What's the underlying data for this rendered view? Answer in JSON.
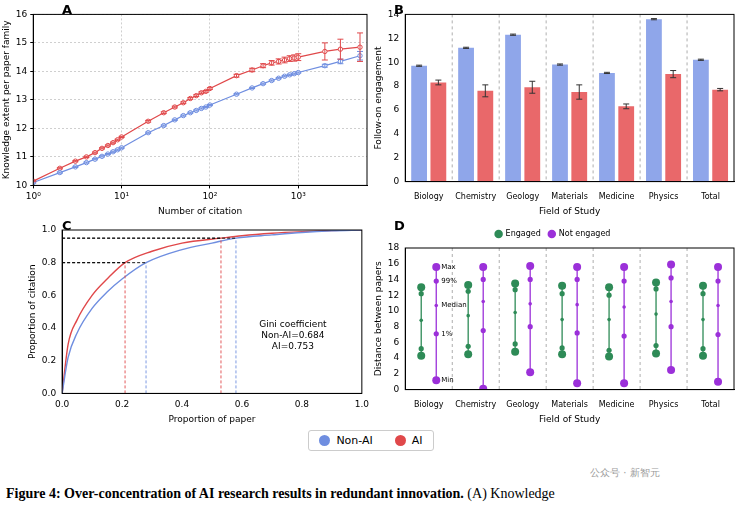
{
  "chart_data": [
    {
      "type": "line",
      "title": "A",
      "log": "x",
      "grid": true,
      "x_label": "Number of citation",
      "y_label": "Knowledge extent per paper family",
      "x": [
        1,
        2,
        3,
        4,
        5,
        6,
        7,
        8,
        9,
        10,
        20,
        30,
        40,
        50,
        60,
        70,
        80,
        90,
        100,
        200,
        300,
        400,
        500,
        600,
        700,
        800,
        900,
        1000,
        2000,
        3000,
        5000
      ],
      "xlim": [
        1,
        6000
      ],
      "xticks": [
        {
          "value": 1,
          "label": "10⁰"
        },
        {
          "value": 10,
          "label": "10¹"
        },
        {
          "value": 100,
          "label": "10²"
        },
        {
          "value": 1000,
          "label": "10³"
        }
      ],
      "ylim": [
        10,
        16
      ],
      "yticks": [
        10,
        11,
        12,
        13,
        14,
        15,
        16
      ],
      "marker": "circle",
      "series": [
        {
          "name": "Non-AI",
          "color": "#6f8ee0",
          "values": [
            10.1,
            10.45,
            10.65,
            10.8,
            10.92,
            11.02,
            11.1,
            11.18,
            11.25,
            11.32,
            11.85,
            12.1,
            12.3,
            12.45,
            12.55,
            12.63,
            12.7,
            12.75,
            12.82,
            13.2,
            13.42,
            13.57,
            13.68,
            13.76,
            13.83,
            13.88,
            13.92,
            13.96,
            14.2,
            14.35,
            14.55
          ],
          "errors": [
            0.02,
            0.02,
            0.02,
            0.02,
            0.02,
            0.02,
            0.02,
            0.02,
            0.02,
            0.02,
            0.02,
            0.02,
            0.02,
            0.02,
            0.02,
            0.02,
            0.02,
            0.02,
            0.02,
            0.02,
            0.02,
            0.02,
            0.02,
            0.02,
            0.02,
            0.02,
            0.02,
            0.02,
            0.05,
            0.08,
            0.15
          ]
        },
        {
          "name": "AI",
          "color": "#e0484a",
          "values": [
            10.15,
            10.6,
            10.85,
            11.0,
            11.15,
            11.3,
            11.4,
            11.5,
            11.6,
            11.7,
            12.25,
            12.55,
            12.75,
            12.9,
            13.05,
            13.15,
            13.25,
            13.3,
            13.4,
            13.85,
            14.05,
            14.2,
            14.3,
            14.35,
            14.4,
            14.45,
            14.47,
            14.5,
            14.7,
            14.78,
            14.85
          ],
          "errors": [
            0.02,
            0.02,
            0.02,
            0.02,
            0.02,
            0.02,
            0.02,
            0.02,
            0.02,
            0.02,
            0.03,
            0.03,
            0.03,
            0.03,
            0.03,
            0.03,
            0.03,
            0.03,
            0.03,
            0.05,
            0.06,
            0.07,
            0.08,
            0.09,
            0.1,
            0.1,
            0.11,
            0.12,
            0.3,
            0.35,
            0.5
          ]
        }
      ]
    },
    {
      "type": "bar",
      "title": "B",
      "grid": false,
      "x_label": "Field of Study",
      "y_label": "Follow-on engagement",
      "categories": [
        "Biology",
        "Chemistry",
        "Geology",
        "Materials",
        "Medicine",
        "Physics",
        "Total"
      ],
      "ylim": [
        0,
        14
      ],
      "yticks": [
        0,
        2,
        4,
        6,
        8,
        10,
        12,
        14
      ],
      "series": [
        {
          "name": "Non-AI",
          "color": "#8fa6ea",
          "values": [
            9.7,
            11.2,
            12.3,
            9.8,
            9.1,
            13.6,
            10.2
          ],
          "errors": [
            0.05,
            0.05,
            0.05,
            0.05,
            0.05,
            0.05,
            0.05
          ]
        },
        {
          "name": "AI",
          "color": "#e9686a",
          "values": [
            8.3,
            7.6,
            7.9,
            7.5,
            6.3,
            9.0,
            7.7
          ],
          "errors": [
            0.2,
            0.5,
            0.5,
            0.6,
            0.2,
            0.3,
            0.1
          ]
        }
      ]
    },
    {
      "type": "line",
      "title": "C",
      "grid": false,
      "x_label": "Proportion of paper",
      "y_label": "Proportion of citation",
      "xlim": [
        0,
        1
      ],
      "xticks": [
        {
          "value": 0,
          "label": "0.0"
        },
        {
          "value": 0.2,
          "label": "0.2"
        },
        {
          "value": 0.4,
          "label": "0.4"
        },
        {
          "value": 0.6,
          "label": "0.6"
        },
        {
          "value": 0.8,
          "label": "0.8"
        },
        {
          "value": 1,
          "label": "1.0"
        }
      ],
      "ylim": [
        0,
        1
      ],
      "yticks": [
        {
          "value": 0,
          "label": "0.0"
        },
        {
          "value": 0.2,
          "label": "0.2"
        },
        {
          "value": 0.4,
          "label": "0.4"
        },
        {
          "value": 0.6,
          "label": "0.6"
        },
        {
          "value": 0.8,
          "label": "0.8"
        },
        {
          "value": 1,
          "label": "1.0"
        }
      ],
      "series": [
        {
          "name": "Non-AI",
          "color": "#6f8ee0",
          "x": [
            0,
            0.02,
            0.05,
            0.1,
            0.15,
            0.2,
            0.28,
            0.4,
            0.5,
            0.58,
            0.7,
            0.8,
            0.9,
            1
          ],
          "values": [
            0,
            0.22,
            0.37,
            0.52,
            0.62,
            0.7,
            0.8,
            0.88,
            0.92,
            0.95,
            0.97,
            0.985,
            0.995,
            1
          ]
        },
        {
          "name": "AI",
          "color": "#e0484a",
          "x": [
            0,
            0.02,
            0.05,
            0.1,
            0.15,
            0.21,
            0.3,
            0.4,
            0.53,
            0.6,
            0.7,
            0.8,
            0.9,
            1
          ],
          "values": [
            0,
            0.3,
            0.45,
            0.6,
            0.7,
            0.8,
            0.87,
            0.92,
            0.95,
            0.965,
            0.98,
            0.99,
            0.997,
            1
          ]
        }
      ],
      "reference_lines": [
        {
          "x": 0.21,
          "y": 0.8,
          "color": "#e0484a"
        },
        {
          "x": 0.53,
          "y": 0.95,
          "color": "#e0484a"
        },
        {
          "x": 0.28,
          "y": 0.8,
          "color": "#6f8ee0"
        },
        {
          "x": 0.58,
          "y": 0.95,
          "color": "#6f8ee0"
        }
      ],
      "annotation": [
        "Gini coefficient",
        "Non-AI=0.684",
        "AI=0.753"
      ]
    },
    {
      "type": "range",
      "title": "D",
      "grid": false,
      "legend": "top",
      "x_label": "Field of Study",
      "y_label": "Distance between papers",
      "categories": [
        "Biology",
        "Chemistry",
        "Geology",
        "Materials",
        "Medicine",
        "Physics",
        "Total"
      ],
      "ylim": [
        0,
        18
      ],
      "yticks": [
        0,
        2,
        4,
        6,
        8,
        10,
        12,
        14,
        16,
        18
      ],
      "stat_labels": [
        "Min",
        "1%",
        "Median",
        "99%",
        "Max"
      ],
      "series": [
        {
          "name": "Engaged",
          "color": "#2e8b57",
          "values": [
            [
              4.3,
              5.2,
              8.8,
              12.2,
              13.0
            ],
            [
              4.5,
              5.5,
              9.4,
              12.5,
              13.3
            ],
            [
              4.8,
              5.8,
              9.8,
              12.7,
              13.5
            ],
            [
              4.5,
              5.3,
              8.9,
              12.2,
              13.2
            ],
            [
              4.2,
              5.0,
              8.9,
              12.0,
              13.0
            ],
            [
              4.6,
              5.6,
              9.6,
              12.8,
              13.6
            ],
            [
              4.3,
              5.2,
              8.9,
              12.2,
              13.2
            ]
          ]
        },
        {
          "name": "Not engaged",
          "color": "#9b30d9",
          "values": [
            [
              1.2,
              7.1,
              10.7,
              13.8,
              15.6
            ],
            [
              0.1,
              7.5,
              11.2,
              14.0,
              15.6
            ],
            [
              2.2,
              8.0,
              10.9,
              14.0,
              15.7
            ],
            [
              0.8,
              7.2,
              10.8,
              14.0,
              15.6
            ],
            [
              0.8,
              6.8,
              10.5,
              13.8,
              15.6
            ],
            [
              2.5,
              8.0,
              11.2,
              14.2,
              15.9
            ],
            [
              1.0,
              7.0,
              10.7,
              13.8,
              15.6
            ]
          ]
        }
      ]
    }
  ],
  "legend_items": [
    {
      "name": "Non-AI",
      "color": "#6f8ee0"
    },
    {
      "name": "AI",
      "color": "#e0484a"
    }
  ],
  "caption_bold": "Figure 4: Over-concentration of AI research results in redundant innovation.",
  "caption_rest": "(A) Knowledge",
  "watermark": "公众号 · 新智元"
}
